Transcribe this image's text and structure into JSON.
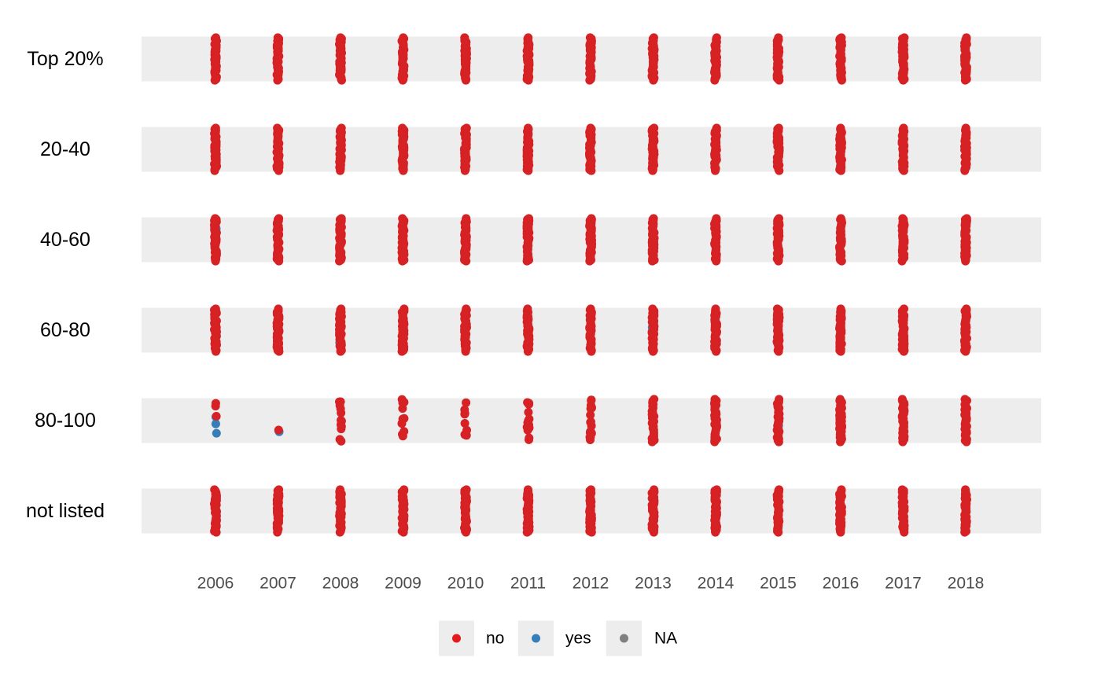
{
  "chart_data": {
    "type": "scatter",
    "x": [
      2006,
      2007,
      2008,
      2009,
      2010,
      2011,
      2012,
      2013,
      2014,
      2015,
      2016,
      2017,
      2018
    ],
    "categories": [
      "Top 20%",
      "20-40",
      "40-60",
      "60-80",
      "80-100",
      "not listed"
    ],
    "legend": {
      "position": "bottom",
      "items": [
        {
          "label": "no",
          "color": "#E41A1C"
        },
        {
          "label": "yes",
          "color": "#377EB8"
        },
        {
          "label": "NA",
          "color": "#808080"
        }
      ]
    },
    "colors": {
      "no": "#D62224",
      "yes": "#377EB8",
      "NA": "#808080",
      "band": "#EDEDED"
    },
    "jitter_spread": 0.45,
    "cells": {
      "Top 20%": {
        "no": [
          40,
          40,
          40,
          40,
          40,
          40,
          40,
          40,
          40,
          40,
          40,
          40,
          40
        ],
        "yes": [
          0,
          0,
          0,
          0,
          0,
          0,
          0,
          0,
          0,
          0,
          0,
          0,
          0
        ]
      },
      "20-40": {
        "no": [
          40,
          40,
          40,
          40,
          40,
          40,
          40,
          40,
          40,
          40,
          40,
          40,
          40
        ],
        "yes": [
          0,
          0,
          0,
          0,
          0,
          0,
          0,
          0,
          0,
          0,
          1,
          0,
          0
        ]
      },
      "40-60": {
        "no": [
          40,
          40,
          40,
          40,
          40,
          40,
          40,
          40,
          40,
          40,
          40,
          40,
          40
        ],
        "yes": [
          1,
          0,
          0,
          0,
          0,
          0,
          0,
          0,
          0,
          0,
          0,
          0,
          0
        ]
      },
      "60-80": {
        "no": [
          40,
          40,
          40,
          40,
          40,
          40,
          40,
          40,
          40,
          40,
          40,
          40,
          40
        ],
        "yes": [
          1,
          0,
          1,
          1,
          0,
          0,
          0,
          1,
          0,
          0,
          0,
          0,
          0
        ]
      },
      "80-100": {
        "no": [
          3,
          1,
          12,
          10,
          8,
          14,
          16,
          26,
          30,
          30,
          30,
          34,
          34
        ],
        "yes": [
          3,
          2,
          0,
          0,
          0,
          0,
          1,
          0,
          0,
          1,
          0,
          0,
          0
        ]
      },
      "not listed": {
        "no": [
          40,
          40,
          40,
          40,
          40,
          40,
          40,
          40,
          40,
          40,
          40,
          40,
          40
        ],
        "yes": [
          0,
          0,
          0,
          0,
          0,
          0,
          0,
          0,
          0,
          0,
          0,
          0,
          0
        ],
        "na": [
          0,
          0,
          0,
          0,
          1,
          0,
          0,
          0,
          0,
          0,
          0,
          0,
          0
        ]
      }
    }
  }
}
